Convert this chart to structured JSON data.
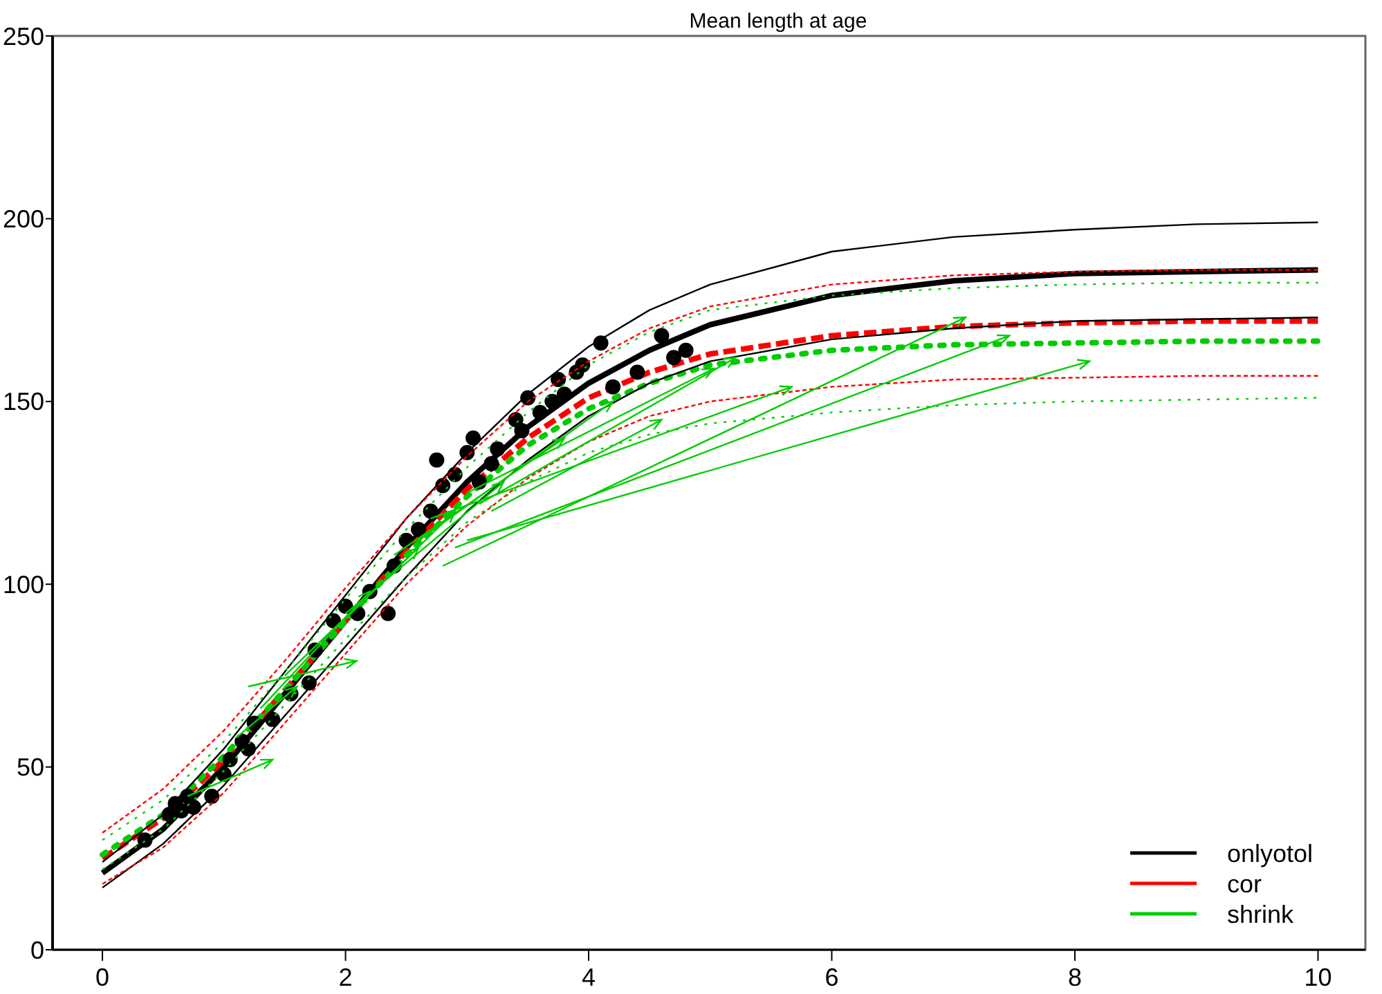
{
  "chart_data": {
    "type": "line",
    "title": "Mean length at age",
    "xlim": [
      -0.41,
      10.39
    ],
    "ylim": [
      0,
      250
    ],
    "xticks": [
      0,
      2,
      4,
      6,
      8,
      10
    ],
    "yticks": [
      0,
      50,
      100,
      150,
      200,
      250
    ],
    "grid": false,
    "legend": "bottom right",
    "series": [
      {
        "type": "scatter",
        "color": "#000000",
        "marker": "circle",
        "x": [
          0.35,
          0.55,
          0.6,
          0.65,
          0.7,
          0.75,
          0.9,
          1.0,
          1.05,
          1.15,
          1.2,
          1.25,
          1.4,
          1.55,
          1.7,
          1.75,
          1.9,
          2.0,
          2.1,
          2.2,
          2.35,
          2.4,
          2.5,
          2.6,
          2.7,
          2.75,
          2.8,
          2.9,
          3.0,
          3.05,
          3.1,
          3.2,
          3.25,
          3.4,
          3.45,
          3.5,
          3.6,
          3.7,
          3.75,
          3.8,
          3.9,
          3.95,
          4.1,
          4.2,
          4.4,
          4.6,
          4.7,
          4.8
        ],
        "values": [
          30,
          37,
          40,
          38,
          42,
          39,
          42,
          48,
          52,
          57,
          55,
          62,
          63,
          70,
          73,
          82,
          90,
          94,
          92,
          98,
          92,
          105,
          112,
          115,
          120,
          134,
          127,
          130,
          136,
          140,
          128,
          133,
          137,
          145,
          142,
          151,
          147,
          150,
          156,
          152,
          158,
          160,
          166,
          154,
          158,
          168,
          162,
          164
        ]
      },
      {
        "color": "#000000",
        "line_style": "solid",
        "x": [
          0,
          0.5,
          1,
          1.5,
          2,
          2.5,
          3,
          3.5,
          4,
          4.5,
          5,
          6,
          7,
          8,
          9,
          10
        ],
        "values": [
          24,
          37,
          55,
          76,
          97,
          118,
          136,
          152,
          165,
          175,
          182,
          191,
          195,
          197,
          198.5,
          199
        ]
      },
      {
        "color": "#000000",
        "line_style": "solid",
        "x": [
          0,
          0.5,
          1,
          1.5,
          2,
          2.5,
          3,
          3.5,
          4,
          4.5,
          5,
          6,
          7,
          8,
          9,
          10
        ],
        "values": [
          17,
          29,
          45,
          64,
          83,
          102,
          120,
          134,
          146,
          155,
          161,
          167,
          170,
          172,
          172.5,
          173
        ]
      },
      {
        "color": "#ff0000",
        "line_style": "dashed",
        "x": [
          0,
          0.5,
          1,
          1.5,
          2,
          2.5,
          3,
          3.5,
          4,
          4.5,
          5,
          6,
          7,
          8,
          9,
          10
        ],
        "values": [
          32,
          44,
          60,
          79,
          99,
          118,
          135,
          150,
          161,
          170,
          176,
          182,
          184.5,
          185.5,
          186,
          186
        ]
      },
      {
        "color": "#ff0000",
        "line_style": "dashed",
        "x": [
          0,
          0.5,
          1,
          1.5,
          2,
          2.5,
          3,
          3.5,
          4,
          4.5,
          5,
          6,
          7,
          8,
          9,
          10
        ],
        "values": [
          18,
          28,
          43,
          62,
          81,
          100,
          116,
          129,
          139,
          146,
          150,
          154,
          156,
          156.5,
          157,
          157
        ]
      },
      {
        "color": "#00cc00",
        "line_style": "dotted",
        "x": [
          0,
          0.5,
          1,
          1.5,
          2,
          2.5,
          3,
          3.5,
          4,
          4.5,
          5,
          6,
          7,
          8,
          9,
          10
        ],
        "values": [
          30,
          41,
          57,
          76,
          96,
          115,
          132,
          147,
          160,
          169,
          175,
          179,
          181,
          182,
          182.5,
          182.5
        ]
      },
      {
        "color": "#00cc00",
        "line_style": "dotted",
        "x": [
          0,
          0.5,
          1,
          1.5,
          2,
          2.5,
          3,
          3.5,
          4,
          4.5,
          5,
          6,
          7,
          8,
          9,
          10
        ],
        "values": [
          22,
          33,
          49,
          67,
          85,
          102,
          117,
          128,
          136,
          141,
          144,
          147,
          149,
          150,
          150.5,
          151
        ]
      },
      {
        "color": "#00cc00",
        "x": [
          2.8,
          7.1
        ],
        "values": [
          105,
          173
        ]
      },
      {
        "color": "#00cc00",
        "x": [
          2.9,
          7.46
        ],
        "values": [
          110,
          168
        ]
      },
      {
        "color": "#00cc00",
        "x": [
          3.0,
          8.12
        ],
        "values": [
          112,
          161
        ]
      },
      {
        "color": "#00cc00",
        "x": [
          2.7,
          5.67
        ],
        "values": [
          118,
          154
        ]
      },
      {
        "color": "#00cc00",
        "x": [
          3.1,
          5.21
        ],
        "values": [
          122,
          162
        ]
      },
      {
        "color": "#00cc00",
        "x": [
          3.0,
          5.03
        ],
        "values": [
          125,
          159
        ]
      },
      {
        "color": "#00cc00",
        "x": [
          3.2,
          4.6
        ],
        "values": [
          120,
          145
        ]
      },
      {
        "color": "#00cc00",
        "x": [
          2.6,
          4.2
        ],
        "values": [
          112,
          150
        ]
      },
      {
        "color": "#00cc00",
        "x": [
          2.4,
          3.8
        ],
        "values": [
          108,
          140
        ]
      },
      {
        "color": "#00cc00",
        "x": [
          2.0,
          3.3
        ],
        "values": [
          92,
          128
        ]
      },
      {
        "color": "#00cc00",
        "x": [
          1.8,
          2.9
        ],
        "values": [
          84,
          120
        ]
      },
      {
        "color": "#00cc00",
        "x": [
          1.5,
          2.6
        ],
        "values": [
          75,
          110
        ]
      },
      {
        "color": "#00cc00",
        "x": [
          1.3,
          2.2
        ],
        "values": [
          66,
          98
        ]
      },
      {
        "color": "#00cc00",
        "x": [
          1.2,
          2.09
        ],
        "values": [
          72,
          79
        ]
      },
      {
        "color": "#00cc00",
        "x": [
          0.7,
          1.4
        ],
        "values": [
          42,
          52
        ]
      },
      {
        "color": "#00cc00",
        "x": [
          1.1,
          1.6
        ],
        "values": [
          58,
          72
        ]
      },
      {
        "name": "onlyotol",
        "color": "#000000",
        "line_style": "solid",
        "x": [
          0,
          0.5,
          1,
          1.5,
          2,
          2.5,
          3,
          3.5,
          4,
          4.5,
          5,
          6,
          7,
          8,
          9,
          10
        ],
        "values": [
          21,
          33,
          50,
          70,
          90,
          110,
          128,
          143,
          155,
          164,
          171,
          179,
          183,
          185,
          185.5,
          186
        ]
      },
      {
        "name": "cor",
        "color": "#ff0000",
        "line_style": "dashed",
        "x": [
          0,
          0.5,
          1,
          1.5,
          2,
          2.5,
          3,
          3.5,
          4,
          4.5,
          5,
          6,
          7,
          8,
          9,
          10
        ],
        "values": [
          25,
          36,
          52,
          71,
          90,
          109,
          126,
          140,
          151,
          158,
          163,
          168,
          170.5,
          171.5,
          172,
          172
        ]
      },
      {
        "name": "shrink",
        "color": "#00cc00",
        "line_style": "dotted",
        "x": [
          0,
          0.5,
          1,
          1.5,
          2,
          2.5,
          3,
          3.5,
          4,
          4.5,
          5,
          6,
          7,
          8,
          9,
          10
        ],
        "values": [
          26,
          37,
          53,
          71,
          90,
          108,
          124,
          138,
          148,
          155,
          160,
          164,
          165.5,
          166,
          166.5,
          166.5
        ]
      }
    ]
  }
}
